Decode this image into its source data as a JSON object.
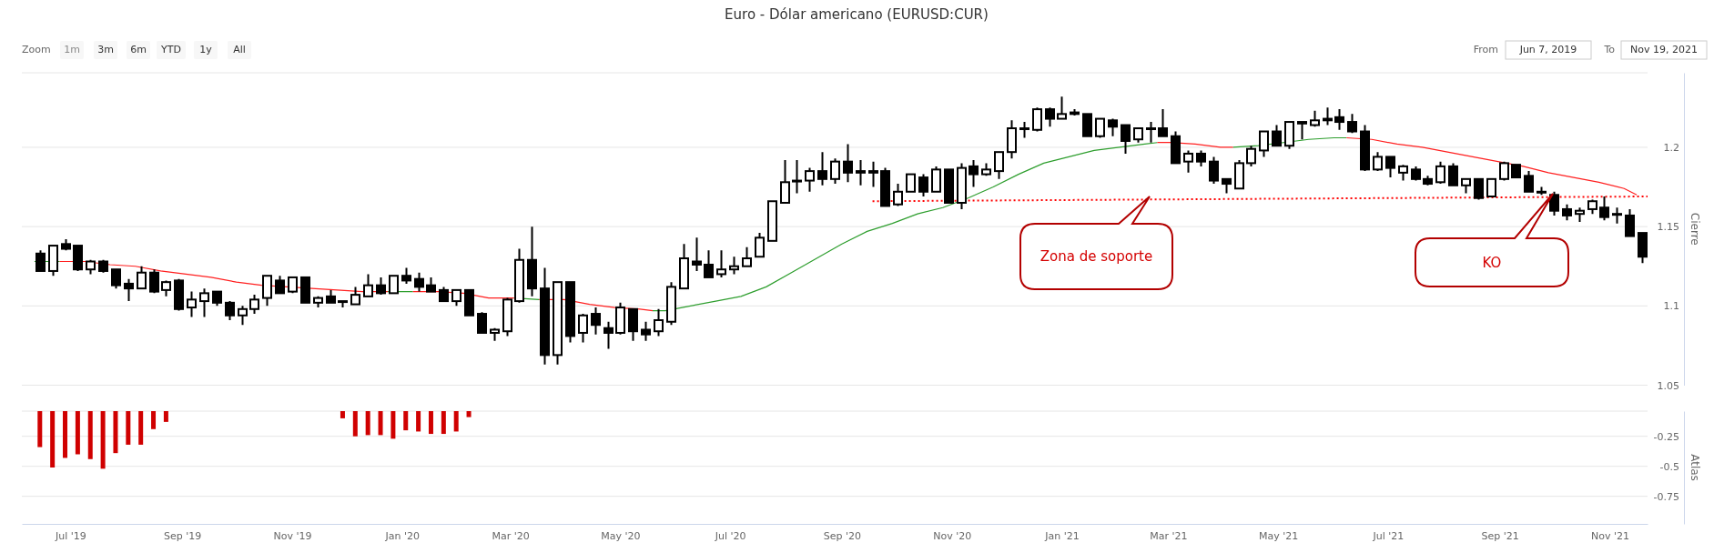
{
  "chart_data": [
    {
      "type": "candlestick",
      "title": "Euro - Dólar americano (EURUSD:CUR)",
      "ylabel": "Cierre",
      "xlim": [
        "2019-06-04",
        "2021-11-22"
      ],
      "ylim": [
        1.05,
        1.247
      ],
      "yticks": [
        1.05,
        1.1,
        1.15,
        1.2
      ],
      "grid": "y",
      "tick_labels": "y",
      "x": [
        "2019-06-14",
        "2019-06-21",
        "2019-06-28",
        "2019-07-05",
        "2019-07-12",
        "2019-07-19",
        "2019-07-26",
        "2019-08-02",
        "2019-08-09",
        "2019-08-16",
        "2019-08-23",
        "2019-08-30",
        "2019-09-06",
        "2019-09-13",
        "2019-09-20",
        "2019-09-27",
        "2019-10-04",
        "2019-10-11",
        "2019-10-18",
        "2019-10-25",
        "2019-11-01",
        "2019-11-08",
        "2019-11-15",
        "2019-11-22",
        "2019-11-29",
        "2019-12-06",
        "2019-12-13",
        "2019-12-20",
        "2019-12-27",
        "2020-01-03",
        "2020-01-10",
        "2020-01-17",
        "2020-01-24",
        "2020-01-31",
        "2020-02-07",
        "2020-02-14",
        "2020-02-21",
        "2020-02-28",
        "2020-03-06",
        "2020-03-13",
        "2020-03-20",
        "2020-03-27",
        "2020-04-03",
        "2020-04-10",
        "2020-04-17",
        "2020-04-24",
        "2020-05-01",
        "2020-05-08",
        "2020-05-15",
        "2020-05-22",
        "2020-05-29",
        "2020-06-05",
        "2020-06-12",
        "2020-06-19",
        "2020-06-26",
        "2020-07-03",
        "2020-07-10",
        "2020-07-17",
        "2020-07-24",
        "2020-07-31",
        "2020-08-07",
        "2020-08-14",
        "2020-08-21",
        "2020-08-28",
        "2020-09-04",
        "2020-09-11",
        "2020-09-18",
        "2020-09-25",
        "2020-10-02",
        "2020-10-09",
        "2020-10-16",
        "2020-10-23",
        "2020-10-30",
        "2020-11-06",
        "2020-11-13",
        "2020-11-20",
        "2020-11-27",
        "2020-12-04",
        "2020-12-11",
        "2020-12-18",
        "2020-12-25",
        "2021-01-01",
        "2021-01-08",
        "2021-01-15",
        "2021-01-22",
        "2021-01-29",
        "2021-02-05",
        "2021-02-12",
        "2021-02-19",
        "2021-02-26",
        "2021-03-05",
        "2021-03-12",
        "2021-03-19",
        "2021-03-26",
        "2021-04-02",
        "2021-04-09",
        "2021-04-16",
        "2021-04-23",
        "2021-04-30",
        "2021-05-07",
        "2021-05-14",
        "2021-05-21",
        "2021-05-28",
        "2021-06-04",
        "2021-06-11",
        "2021-06-18",
        "2021-06-25",
        "2021-07-02",
        "2021-07-09",
        "2021-07-16",
        "2021-07-23",
        "2021-07-30",
        "2021-08-06",
        "2021-08-13",
        "2021-08-20",
        "2021-08-27",
        "2021-09-03",
        "2021-09-10",
        "2021-09-17",
        "2021-09-24",
        "2021-10-01",
        "2021-10-08",
        "2021-10-15",
        "2021-10-22",
        "2021-10-29",
        "2021-11-05",
        "2021-11-12",
        "2021-11-19"
      ],
      "ohlc": [
        [
          1.133,
          1.135,
          1.122,
          1.122
        ],
        [
          1.122,
          1.138,
          1.119,
          1.138
        ],
        [
          1.139,
          1.142,
          1.135,
          1.136
        ],
        [
          1.138,
          1.138,
          1.122,
          1.123
        ],
        [
          1.123,
          1.129,
          1.12,
          1.128
        ],
        [
          1.128,
          1.129,
          1.121,
          1.122
        ],
        [
          1.123,
          1.123,
          1.111,
          1.113
        ],
        [
          1.114,
          1.117,
          1.103,
          1.111
        ],
        [
          1.111,
          1.125,
          1.111,
          1.121
        ],
        [
          1.121,
          1.123,
          1.108,
          1.109
        ],
        [
          1.11,
          1.116,
          1.106,
          1.115
        ],
        [
          1.116,
          1.117,
          1.097,
          1.098
        ],
        [
          1.099,
          1.109,
          1.093,
          1.104
        ],
        [
          1.103,
          1.111,
          1.093,
          1.108
        ],
        [
          1.109,
          1.109,
          1.1,
          1.102
        ],
        [
          1.102,
          1.103,
          1.091,
          1.094
        ],
        [
          1.094,
          1.1,
          1.088,
          1.098
        ],
        [
          1.098,
          1.107,
          1.095,
          1.104
        ],
        [
          1.105,
          1.119,
          1.1,
          1.119
        ],
        [
          1.116,
          1.119,
          1.108,
          1.108
        ],
        [
          1.109,
          1.118,
          1.108,
          1.118
        ],
        [
          1.118,
          1.118,
          1.102,
          1.102
        ],
        [
          1.102,
          1.106,
          1.099,
          1.105
        ],
        [
          1.106,
          1.11,
          1.102,
          1.102
        ],
        [
          1.103,
          1.103,
          1.099,
          1.103
        ],
        [
          1.101,
          1.112,
          1.101,
          1.107
        ],
        [
          1.106,
          1.12,
          1.106,
          1.113
        ],
        [
          1.113,
          1.118,
          1.107,
          1.108
        ],
        [
          1.108,
          1.119,
          1.108,
          1.119
        ],
        [
          1.119,
          1.124,
          1.114,
          1.116
        ],
        [
          1.117,
          1.121,
          1.109,
          1.112
        ],
        [
          1.113,
          1.118,
          1.109,
          1.109
        ],
        [
          1.11,
          1.112,
          1.103,
          1.103
        ],
        [
          1.103,
          1.11,
          1.1,
          1.11
        ],
        [
          1.11,
          1.11,
          1.094,
          1.094
        ],
        [
          1.095,
          1.096,
          1.083,
          1.083
        ],
        [
          1.083,
          1.086,
          1.078,
          1.085
        ],
        [
          1.084,
          1.105,
          1.081,
          1.104
        ],
        [
          1.103,
          1.136,
          1.102,
          1.129
        ],
        [
          1.129,
          1.15,
          1.106,
          1.111
        ],
        [
          1.111,
          1.124,
          1.063,
          1.069
        ],
        [
          1.069,
          1.115,
          1.063,
          1.115
        ],
        [
          1.115,
          1.115,
          1.077,
          1.081
        ],
        [
          1.083,
          1.095,
          1.077,
          1.094
        ],
        [
          1.095,
          1.099,
          1.082,
          1.088
        ],
        [
          1.086,
          1.09,
          1.073,
          1.083
        ],
        [
          1.083,
          1.102,
          1.082,
          1.099
        ],
        [
          1.098,
          1.098,
          1.078,
          1.084
        ],
        [
          1.085,
          1.09,
          1.078,
          1.082
        ],
        [
          1.084,
          1.098,
          1.081,
          1.091
        ],
        [
          1.09,
          1.115,
          1.088,
          1.112
        ],
        [
          1.111,
          1.139,
          1.111,
          1.13
        ],
        [
          1.128,
          1.143,
          1.122,
          1.126
        ],
        [
          1.126,
          1.135,
          1.118,
          1.118
        ],
        [
          1.12,
          1.135,
          1.118,
          1.123
        ],
        [
          1.123,
          1.131,
          1.12,
          1.125
        ],
        [
          1.125,
          1.137,
          1.125,
          1.13
        ],
        [
          1.131,
          1.146,
          1.131,
          1.143
        ],
        [
          1.141,
          1.166,
          1.141,
          1.166
        ],
        [
          1.165,
          1.192,
          1.165,
          1.178
        ],
        [
          1.179,
          1.192,
          1.171,
          1.179
        ],
        [
          1.179,
          1.187,
          1.172,
          1.185
        ],
        [
          1.185,
          1.197,
          1.176,
          1.18
        ],
        [
          1.18,
          1.193,
          1.177,
          1.191
        ],
        [
          1.191,
          1.202,
          1.178,
          1.184
        ],
        [
          1.185,
          1.192,
          1.176,
          1.184
        ],
        [
          1.185,
          1.191,
          1.175,
          1.184
        ],
        [
          1.185,
          1.187,
          1.163,
          1.163
        ],
        [
          1.164,
          1.177,
          1.163,
          1.172
        ],
        [
          1.172,
          1.183,
          1.172,
          1.183
        ],
        [
          1.181,
          1.183,
          1.169,
          1.172
        ],
        [
          1.172,
          1.188,
          1.172,
          1.186
        ],
        [
          1.186,
          1.186,
          1.165,
          1.165
        ],
        [
          1.165,
          1.19,
          1.161,
          1.187
        ],
        [
          1.188,
          1.192,
          1.175,
          1.183
        ],
        [
          1.183,
          1.19,
          1.182,
          1.186
        ],
        [
          1.185,
          1.197,
          1.18,
          1.197
        ],
        [
          1.197,
          1.217,
          1.193,
          1.212
        ],
        [
          1.212,
          1.216,
          1.206,
          1.212
        ],
        [
          1.211,
          1.225,
          1.21,
          1.224
        ],
        [
          1.224,
          1.225,
          1.213,
          1.218
        ],
        [
          1.218,
          1.232,
          1.218,
          1.221
        ],
        [
          1.222,
          1.224,
          1.22,
          1.221
        ],
        [
          1.221,
          1.221,
          1.207,
          1.207
        ],
        [
          1.207,
          1.218,
          1.206,
          1.218
        ],
        [
          1.217,
          1.218,
          1.207,
          1.213
        ],
        [
          1.214,
          1.214,
          1.196,
          1.204
        ],
        [
          1.205,
          1.212,
          1.203,
          1.212
        ],
        [
          1.212,
          1.216,
          1.203,
          1.212
        ],
        [
          1.212,
          1.224,
          1.207,
          1.207
        ],
        [
          1.207,
          1.21,
          1.19,
          1.19
        ],
        [
          1.191,
          1.198,
          1.184,
          1.196
        ],
        [
          1.196,
          1.198,
          1.188,
          1.191
        ],
        [
          1.191,
          1.194,
          1.177,
          1.179
        ],
        [
          1.18,
          1.18,
          1.171,
          1.177
        ],
        [
          1.174,
          1.192,
          1.174,
          1.19
        ],
        [
          1.19,
          1.201,
          1.188,
          1.199
        ],
        [
          1.198,
          1.21,
          1.194,
          1.21
        ],
        [
          1.21,
          1.214,
          1.201,
          1.201
        ],
        [
          1.201,
          1.216,
          1.199,
          1.216
        ],
        [
          1.216,
          1.216,
          1.205,
          1.215
        ],
        [
          1.214,
          1.223,
          1.213,
          1.217
        ],
        [
          1.217,
          1.225,
          1.214,
          1.218
        ],
        [
          1.219,
          1.224,
          1.211,
          1.216
        ],
        [
          1.216,
          1.221,
          1.209,
          1.21
        ],
        [
          1.21,
          1.214,
          1.185,
          1.186
        ],
        [
          1.186,
          1.197,
          1.185,
          1.194
        ],
        [
          1.194,
          1.194,
          1.181,
          1.187
        ],
        [
          1.184,
          1.189,
          1.179,
          1.188
        ],
        [
          1.186,
          1.188,
          1.179,
          1.18
        ],
        [
          1.18,
          1.182,
          1.176,
          1.177
        ],
        [
          1.178,
          1.191,
          1.177,
          1.188
        ],
        [
          1.188,
          1.19,
          1.176,
          1.176
        ],
        [
          1.176,
          1.18,
          1.171,
          1.18
        ],
        [
          1.18,
          1.18,
          1.167,
          1.168
        ],
        [
          1.169,
          1.18,
          1.169,
          1.18
        ],
        [
          1.18,
          1.191,
          1.179,
          1.19
        ],
        [
          1.189,
          1.189,
          1.181,
          1.181
        ],
        [
          1.182,
          1.185,
          1.172,
          1.172
        ],
        [
          1.172,
          1.175,
          1.17,
          1.172
        ],
        [
          1.17,
          1.172,
          1.157,
          1.16
        ],
        [
          1.161,
          1.164,
          1.154,
          1.157
        ],
        [
          1.158,
          1.162,
          1.153,
          1.16
        ],
        [
          1.161,
          1.167,
          1.158,
          1.166
        ],
        [
          1.162,
          1.169,
          1.154,
          1.156
        ],
        [
          1.158,
          1.162,
          1.152,
          1.158
        ],
        [
          1.157,
          1.161,
          1.144,
          1.144
        ],
        [
          1.146,
          1.146,
          1.127,
          1.131
        ]
      ],
      "series": [
        {
          "type": "line",
          "color": "#2e9e2e",
          "marker": "none",
          "line_style": "solid",
          "x": [
            "2019-06-11",
            "2019-06-25",
            "2019-09-24",
            "2019-12-24",
            "2020-01-07",
            "2020-02-04",
            "2020-03-03",
            "2020-03-17",
            "2020-04-21",
            "2020-05-19",
            "2020-05-26",
            "2020-06-09",
            "2020-06-23",
            "2020-07-07",
            "2020-07-21",
            "2020-08-04",
            "2020-08-18",
            "2020-09-01",
            "2020-09-15",
            "2020-09-29",
            "2020-10-13",
            "2020-10-27",
            "2020-11-10",
            "2020-11-24",
            "2020-12-08",
            "2020-12-22",
            "2021-01-05",
            "2021-01-19",
            "2021-02-02",
            "2021-02-16",
            "2021-02-23",
            "2021-03-16",
            "2021-04-06",
            "2021-04-20",
            "2021-05-04",
            "2021-05-18",
            "2021-06-01",
            "2021-06-08"
          ],
          "values": [
            1.128,
            1.128,
            null,
            1.109,
            1.109,
            null,
            1.105,
            1.104,
            null,
            1.097,
            1.097,
            1.1,
            1.103,
            1.106,
            1.112,
            1.121,
            1.13,
            1.139,
            1.147,
            1.152,
            1.158,
            1.162,
            1.168,
            1.175,
            1.183,
            1.19,
            1.194,
            1.198,
            1.2,
            1.202,
            1.203,
            null,
            1.2,
            1.201,
            1.203,
            1.205,
            1.206,
            1.206
          ]
        },
        {
          "type": "line",
          "color": "#ff2020",
          "marker": "none",
          "line_style": "solid",
          "x": [
            "2019-06-25",
            "2019-07-09",
            "2019-07-23",
            "2019-08-06",
            "2019-08-20",
            "2019-09-03",
            "2019-09-17",
            "2019-10-01",
            "2019-10-15",
            "2019-10-29",
            "2019-11-12",
            "2019-11-26",
            "2019-12-10",
            "2019-12-24",
            "2019-12-31",
            "2020-01-07",
            "2020-01-21",
            "2020-02-04",
            "2020-02-18",
            "2020-03-03",
            "2020-03-10",
            "2020-03-17",
            "2020-03-31",
            "2020-04-14",
            "2020-04-28",
            "2020-05-12",
            "2020-05-19",
            "2020-10-13",
            "2021-02-23",
            "2021-03-02",
            "2021-03-16",
            "2021-03-30",
            "2021-04-06",
            "2021-05-11",
            "2021-06-08",
            "2021-06-22",
            "2021-07-06",
            "2021-07-20",
            "2021-08-03",
            "2021-08-17",
            "2021-08-31",
            "2021-09-14",
            "2021-09-28",
            "2021-10-12",
            "2021-10-26",
            "2021-11-09",
            "2021-11-16"
          ],
          "values": [
            1.128,
            1.128,
            1.126,
            1.125,
            1.122,
            1.12,
            1.118,
            1.115,
            1.113,
            1.112,
            1.111,
            1.11,
            1.109,
            1.109,
            null,
            1.109,
            1.109,
            1.108,
            1.105,
            1.105,
            null,
            1.104,
            1.104,
            1.101,
            1.099,
            1.098,
            1.097,
            null,
            1.203,
            1.203,
            1.202,
            1.2,
            1.2,
            null,
            1.206,
            1.205,
            1.202,
            1.2,
            1.197,
            1.194,
            1.191,
            1.188,
            1.184,
            1.181,
            1.178,
            1.174,
            1.17
          ]
        },
        {
          "type": "line",
          "color": "#ff0000",
          "marker": "none",
          "line_style": "dotted",
          "x": [
            "2020-09-18",
            "2021-11-22"
          ],
          "values": [
            1.166,
            1.169
          ]
        }
      ],
      "annotations": [
        "Zona de soporte",
        "KO",
        "Zoom",
        "1m",
        "3m",
        "6m",
        "YTD",
        "1y",
        "All",
        "From",
        "Jun 7, 2019",
        "To",
        "Nov 19, 2021"
      ]
    },
    {
      "type": "bar",
      "ylabel": "Atlas",
      "color": "#d00000",
      "xlim": [
        "2019-06-04",
        "2021-11-22"
      ],
      "ylim": [
        -0.98,
        -0.04
      ],
      "yticks": [
        -0.25,
        -0.5,
        -0.75
      ],
      "grid": "y",
      "xticks": [
        {
          "value": "2019-07-01",
          "label": "Jul '19"
        },
        {
          "value": "2019-09-01",
          "label": "Sep '19"
        },
        {
          "value": "2019-11-01",
          "label": "Nov '19"
        },
        {
          "value": "2020-01-01",
          "label": "Jan '20"
        },
        {
          "value": "2020-03-01",
          "label": "Mar '20"
        },
        {
          "value": "2020-05-01",
          "label": "May '20"
        },
        {
          "value": "2020-07-01",
          "label": "Jul '20"
        },
        {
          "value": "2020-09-01",
          "label": "Sep '20"
        },
        {
          "value": "2020-11-01",
          "label": "Nov '20"
        },
        {
          "value": "2021-01-01",
          "label": "Jan '21"
        },
        {
          "value": "2021-03-01",
          "label": "Mar '21"
        },
        {
          "value": "2021-05-01",
          "label": "May '21"
        },
        {
          "value": "2021-07-01",
          "label": "Jul '21"
        },
        {
          "value": "2021-09-01",
          "label": "Sep '21"
        },
        {
          "value": "2021-11-01",
          "label": "Nov '21"
        }
      ],
      "x": [
        "2019-06-14",
        "2019-06-21",
        "2019-06-28",
        "2019-07-05",
        "2019-07-12",
        "2019-07-19",
        "2019-07-26",
        "2019-08-02",
        "2019-08-09",
        "2019-08-16",
        "2019-08-23",
        "2019-11-29",
        "2019-12-06",
        "2019-12-13",
        "2019-12-20",
        "2019-12-27",
        "2020-01-03",
        "2020-01-10",
        "2020-01-17",
        "2020-01-24",
        "2020-01-31",
        "2020-02-07"
      ],
      "values": [
        -0.34,
        -0.51,
        -0.43,
        -0.4,
        -0.44,
        -0.52,
        -0.39,
        -0.32,
        -0.32,
        -0.19,
        -0.13,
        -0.1,
        -0.25,
        -0.24,
        -0.24,
        -0.27,
        -0.2,
        -0.21,
        -0.23,
        -0.23,
        -0.21,
        -0.09
      ]
    }
  ]
}
